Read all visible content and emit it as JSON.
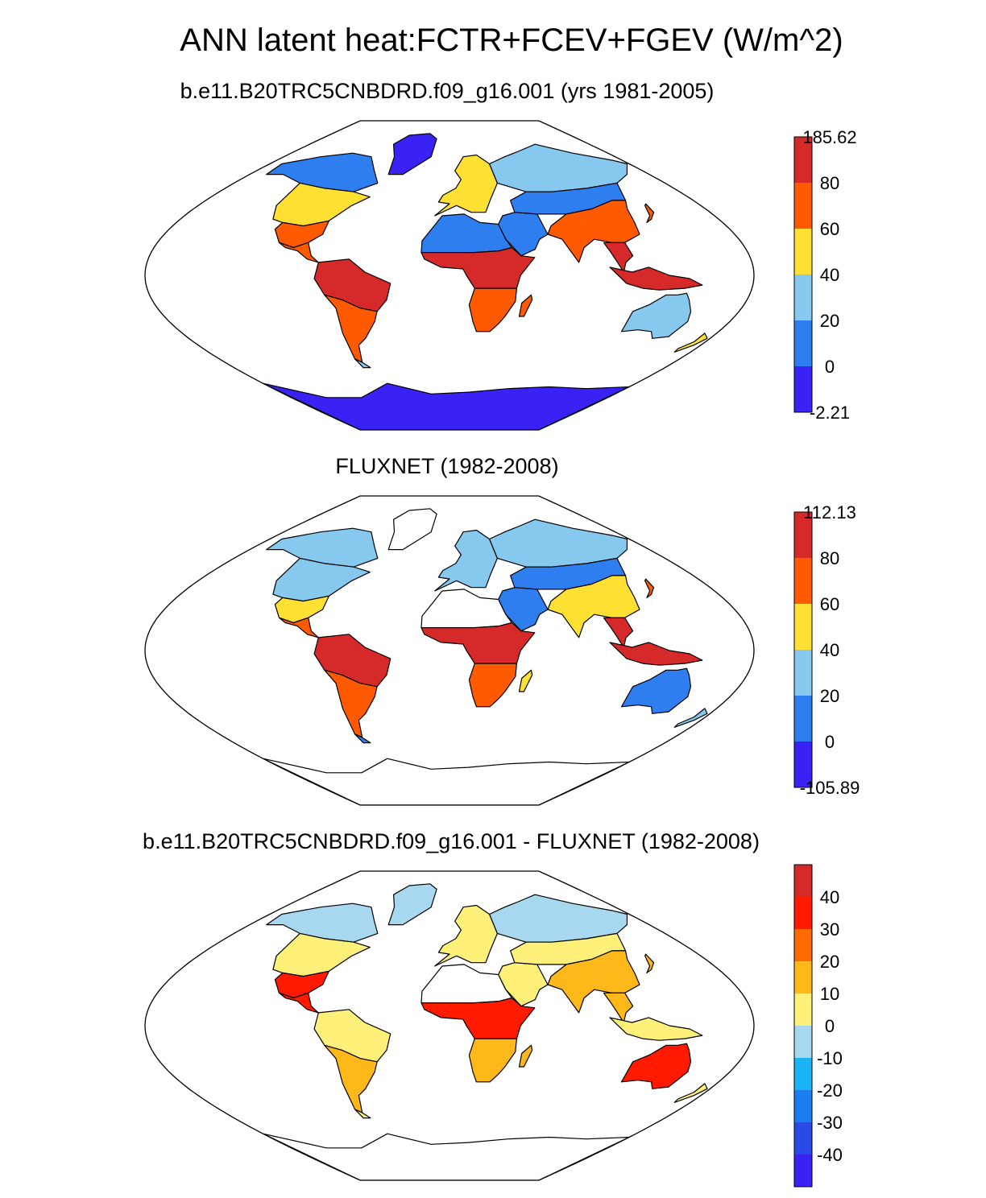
{
  "figure": {
    "title": "ANN latent heat:FCTR+FCEV+FGEV (W/m^2)"
  },
  "panels": [
    {
      "id": "model",
      "subtitle": "b.e11.B20TRC5CNBDRD.f09_g16.001 (yrs 1981-2005)",
      "colorbar": {
        "labels": [
          "185.62",
          "80",
          "60",
          "40",
          "20",
          "0",
          "-2.21"
        ],
        "colors": [
          "#d62a2a",
          "#ff5a00",
          "#ffe033",
          "#87c8ee",
          "#2e7ef0",
          "#3a22f5"
        ]
      }
    },
    {
      "id": "obs",
      "subtitle": "FLUXNET (1982-2008)",
      "colorbar": {
        "labels": [
          "112.13",
          "80",
          "60",
          "40",
          "20",
          "0",
          "-105.89"
        ],
        "colors": [
          "#d62a2a",
          "#ff5a00",
          "#ffe033",
          "#87c8ee",
          "#2e7ef0",
          "#3a22f5"
        ]
      }
    },
    {
      "id": "diff",
      "subtitle": "b.e11.B20TRC5CNBDRD.f09_g16.001 - FLUXNET (1982-2008)",
      "colorbar": {
        "labels": [
          "40",
          "30",
          "20",
          "10",
          "0",
          "-10",
          "-20",
          "-30",
          "-40"
        ],
        "colors": [
          "#d42a2a",
          "#ff1a00",
          "#ff6a00",
          "#ffb81a",
          "#fff07a",
          "#a8d8f0",
          "#1ab4f5",
          "#1a7ef0",
          "#2a4ae8",
          "#3a22f5"
        ]
      }
    }
  ]
}
